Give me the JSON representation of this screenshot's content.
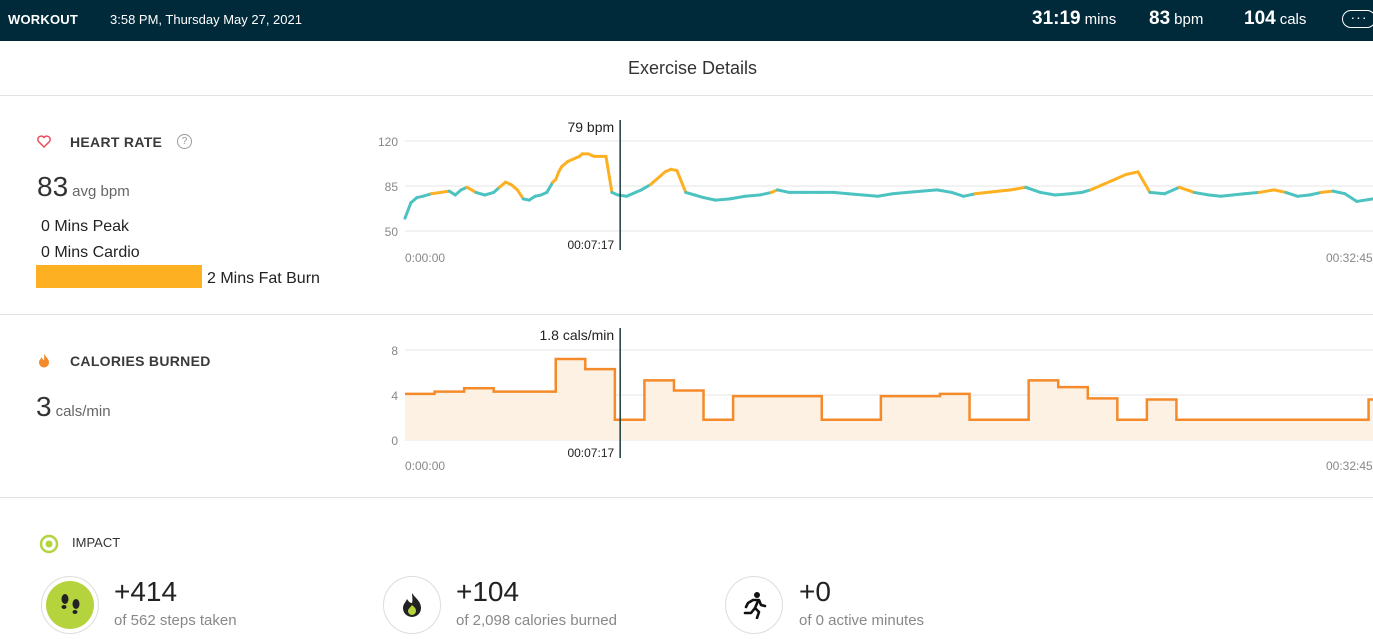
{
  "topbar": {
    "title": "WORKOUT",
    "datetime": "3:58 PM, Thursday May 27, 2021",
    "duration": {
      "value": "31:19",
      "unit": "mins"
    },
    "bpm": {
      "value": "83",
      "unit": "bpm"
    },
    "cals": {
      "value": "104",
      "unit": "cals"
    },
    "more_icon": "more-icon"
  },
  "header": {
    "title": "Exercise Details"
  },
  "heart_rate": {
    "label": "HEART RATE",
    "help": "?",
    "avg_value": "83",
    "avg_unit": "avg bpm",
    "zones": {
      "peak": "0 Mins Peak",
      "cardio": "0 Mins Cardio",
      "fat_burn": "2 Mins Fat Burn"
    },
    "fat_burn_color": "#fdb022",
    "icon": "heart-icon"
  },
  "calories": {
    "label": "CALORIES BURNED",
    "rate_value": "3",
    "rate_unit": "cals/min",
    "icon": "flame-icon"
  },
  "impact": {
    "label": "IMPACT",
    "icon": "target-icon",
    "items": [
      {
        "value": "+414",
        "sub": "of 562 steps taken",
        "icon": "footprints-icon"
      },
      {
        "value": "+104",
        "sub": "of 2,098 calories burned",
        "icon": "flame-icon"
      },
      {
        "value": "+0",
        "sub": "of 0 active minutes",
        "icon": "runner-icon"
      }
    ]
  },
  "chart_data": [
    {
      "type": "line",
      "name": "heart-rate",
      "yticks": [
        "120",
        "85",
        "50"
      ],
      "ylim": [
        50,
        120
      ],
      "xlim_minutes": [
        0,
        32.75
      ],
      "x_start_label": "0:00:00",
      "x_end_label": "00:32:45",
      "cursor": {
        "x_minutes": 7.28,
        "value_label": "79 bpm",
        "time_label": "00:07:17"
      },
      "series_colors": {
        "normal": "#4cc3c0",
        "fat_burn": "#fdb022"
      },
      "x": [
        0,
        0.2,
        0.4,
        0.6,
        0.9,
        1.2,
        1.5,
        1.7,
        1.9,
        2.1,
        2.4,
        2.7,
        3.0,
        3.2,
        3.4,
        3.6,
        3.8,
        4.0,
        4.2,
        4.4,
        4.6,
        4.8,
        5.0,
        5.1,
        5.2,
        5.3,
        5.5,
        5.7,
        5.9,
        6.0,
        6.2,
        6.4,
        6.6,
        6.8,
        7.0,
        7.2,
        7.5,
        7.8,
        8.0,
        8.3,
        8.6,
        8.8,
        9.0,
        9.2,
        9.5,
        9.8,
        10.1,
        10.5,
        11,
        11.5,
        12,
        12.4,
        12.6,
        13,
        13.5,
        14,
        14.5,
        15,
        15.5,
        16,
        16.5,
        17,
        17.5,
        18,
        18.5,
        18.9,
        19.3,
        19.7,
        20.1,
        20.5,
        21,
        21.5,
        22,
        22.5,
        22.9,
        23.2,
        23.6,
        24,
        24.4,
        24.8,
        25.2,
        25.7,
        26.2,
        26.7,
        27.2,
        27.6,
        28,
        28.4,
        28.9,
        29.4,
        29.8,
        30.2,
        30.6,
        31,
        31.4,
        31.8,
        32.2,
        32.75
      ],
      "values": [
        60,
        72,
        76,
        77,
        79,
        80,
        81,
        78,
        82,
        84,
        80,
        78,
        80,
        84,
        88,
        86,
        82,
        75,
        74,
        77,
        78,
        80,
        88,
        90,
        96,
        100,
        104,
        106,
        108,
        110,
        110,
        108,
        108,
        108,
        80,
        78,
        77,
        80,
        82,
        86,
        92,
        96,
        98,
        97,
        80,
        78,
        76,
        74,
        75,
        77,
        78,
        80,
        82,
        80,
        80,
        80,
        80,
        79,
        78,
        77,
        79,
        80,
        81,
        82,
        80,
        77,
        79,
        80,
        81,
        82,
        84,
        80,
        78,
        79,
        80,
        82,
        86,
        90,
        94,
        96,
        80,
        79,
        84,
        80,
        78,
        77,
        78,
        79,
        80,
        82,
        80,
        77,
        78,
        80,
        81,
        79,
        73,
        75
      ],
      "zones": [
        "n",
        "n",
        "n",
        "n",
        "f",
        "f",
        "n",
        "n",
        "n",
        "f",
        "n",
        "n",
        "n",
        "f",
        "f",
        "f",
        "f",
        "n",
        "n",
        "n",
        "n",
        "n",
        "f",
        "f",
        "f",
        "f",
        "f",
        "f",
        "f",
        "f",
        "f",
        "f",
        "f",
        "f",
        "n",
        "n",
        "n",
        "n",
        "n",
        "f",
        "f",
        "f",
        "f",
        "f",
        "n",
        "n",
        "n",
        "n",
        "n",
        "n",
        "n",
        "f",
        "n",
        "n",
        "n",
        "n",
        "n",
        "n",
        "n",
        "n",
        "n",
        "n",
        "n",
        "n",
        "n",
        "n",
        "f",
        "f",
        "f",
        "f",
        "n",
        "n",
        "n",
        "n",
        "n",
        "f",
        "f",
        "f",
        "f",
        "f",
        "n",
        "n",
        "f",
        "n",
        "n",
        "n",
        "n",
        "n",
        "f",
        "f",
        "n",
        "n",
        "n",
        "f",
        "n",
        "n",
        "n",
        "n"
      ]
    },
    {
      "type": "area",
      "name": "calories",
      "yticks": [
        "8",
        "4",
        "0"
      ],
      "ylim": [
        0,
        8
      ],
      "xlim_minutes": [
        0,
        32.75
      ],
      "x_start_label": "0:00:00",
      "x_end_label": "00:32:45",
      "cursor": {
        "x_minutes": 7.28,
        "value_label": "1.8 cals/min",
        "time_label": "00:07:17"
      },
      "line_color": "#f58a2a",
      "fill_color": "#fdf1e4",
      "steps": [
        [
          0,
          4.1
        ],
        [
          1,
          4.3
        ],
        [
          2,
          4.6
        ],
        [
          3,
          4.3
        ],
        [
          5.1,
          7.2
        ],
        [
          6.1,
          6.3
        ],
        [
          7.1,
          1.8
        ],
        [
          8.1,
          5.3
        ],
        [
          9.1,
          4.4
        ],
        [
          10.1,
          1.8
        ],
        [
          11.1,
          3.9
        ],
        [
          14.1,
          1.8
        ],
        [
          16.1,
          3.9
        ],
        [
          18.1,
          4.1
        ],
        [
          19.1,
          1.8
        ],
        [
          21.1,
          5.3
        ],
        [
          22.1,
          4.7
        ],
        [
          23.1,
          3.7
        ],
        [
          24.1,
          1.8
        ],
        [
          25.1,
          3.6
        ],
        [
          26.1,
          1.8
        ],
        [
          32.6,
          3.6
        ],
        [
          32.75,
          3.6
        ]
      ]
    }
  ]
}
